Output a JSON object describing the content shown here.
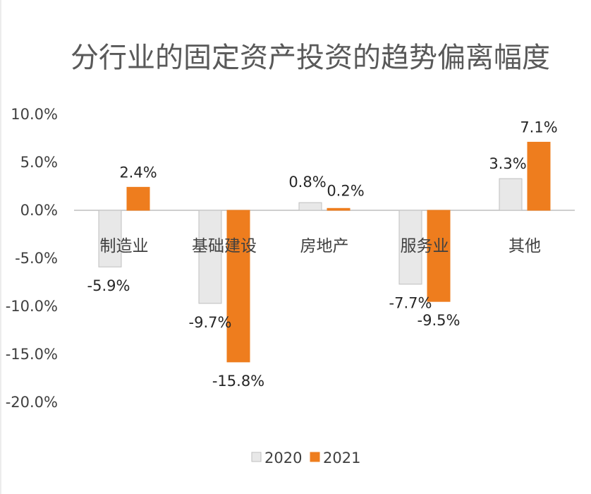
{
  "chart_data": {
    "type": "bar",
    "title": "分行业的固定资产投资的趋势偏离幅度",
    "categories": [
      "制造业",
      "基础建设",
      "房地产",
      "服务业",
      "其他"
    ],
    "series": [
      {
        "name": "2020",
        "values": [
          -5.9,
          -9.7,
          0.8,
          -7.7,
          3.3
        ],
        "labels": [
          "-5.9%",
          "-9.7%",
          "0.8%",
          "-7.7%",
          "3.3%"
        ],
        "color": "#e8e8e8",
        "stroke": "#bfbfbf"
      },
      {
        "name": "2021",
        "values": [
          2.4,
          -15.8,
          0.2,
          -9.5,
          7.1
        ],
        "labels": [
          "2.4%",
          "-15.8%",
          "0.2%",
          "-9.5%",
          "7.1%"
        ],
        "color": "#ee7d1e",
        "stroke": "#ee7d1e"
      }
    ],
    "yticks": [
      "10.0%",
      "5.0%",
      "0.0%",
      "-5.0%",
      "-10.0%",
      "-15.0%",
      "-20.0%"
    ],
    "ylim": [
      -20,
      10
    ],
    "xlabel": "",
    "ylabel": "",
    "grid": false,
    "legend_position": "bottom"
  }
}
